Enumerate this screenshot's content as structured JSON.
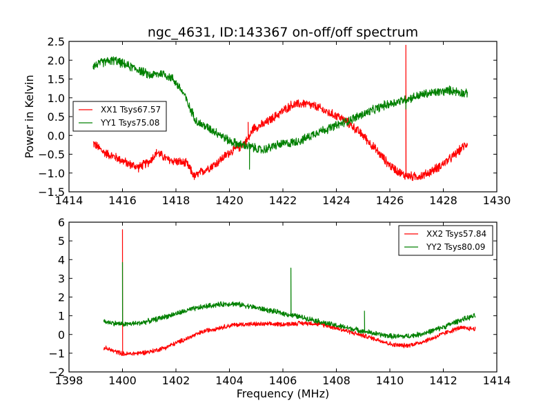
{
  "colors": {
    "red": "#ff0000",
    "green": "#008000",
    "frame": "#000000",
    "background": "#ffffff"
  },
  "chart_data": [
    {
      "type": "line",
      "title": "ngc_4631, ID:143367 on-off/off spectrum",
      "xlabel": "",
      "ylabel": "Power in Kelvin",
      "xlim": [
        1414,
        1430
      ],
      "ylim": [
        -1.5,
        2.5
      ],
      "xticks": [
        "1414",
        "1416",
        "1418",
        "1420",
        "1422",
        "1424",
        "1426",
        "1428",
        "1430"
      ],
      "yticks": [
        "−1.5",
        "−1.0",
        "−0.5",
        "0.0",
        "0.5",
        "1.0",
        "1.5",
        "2.0",
        "2.5"
      ],
      "xtick_values": [
        1414,
        1416,
        1418,
        1420,
        1422,
        1424,
        1426,
        1428,
        1430
      ],
      "ytick_values": [
        -1.5,
        -1.0,
        -0.5,
        0.0,
        0.5,
        1.0,
        1.5,
        2.0,
        2.5
      ],
      "legend_position": "center-left",
      "grid": false,
      "series": [
        {
          "name": "XX1 Tsys67.57",
          "color": "#ff0000",
          "noise": 0.07,
          "x": [
            1414.9,
            1415.3,
            1415.8,
            1416.2,
            1416.6,
            1417.0,
            1417.3,
            1417.7,
            1418.1,
            1418.4,
            1418.7,
            1419.0,
            1419.5,
            1420.0,
            1420.4,
            1420.7,
            1420.9,
            1421.3,
            1421.8,
            1422.3,
            1422.8,
            1423.3,
            1423.7,
            1424.1,
            1424.5,
            1425.0,
            1425.5,
            1426.0,
            1426.5,
            1426.9,
            1427.3,
            1427.8,
            1428.3,
            1428.9
          ],
          "y": [
            -0.2,
            -0.45,
            -0.6,
            -0.75,
            -0.85,
            -0.7,
            -0.45,
            -0.65,
            -0.7,
            -0.75,
            -1.1,
            -0.95,
            -0.75,
            -0.45,
            -0.3,
            -0.1,
            0.2,
            0.3,
            0.55,
            0.8,
            0.85,
            0.75,
            0.6,
            0.5,
            0.3,
            0.0,
            -0.4,
            -0.8,
            -1.05,
            -1.1,
            -1.05,
            -0.85,
            -0.6,
            -0.2
          ],
          "spikes": [
            {
              "x": 1426.6,
              "y": 2.4
            },
            {
              "x": 1420.7,
              "y": 0.35
            }
          ]
        },
        {
          "name": "YY1 Tsys75.08",
          "color": "#008000",
          "noise": 0.07,
          "x": [
            1414.9,
            1415.3,
            1415.7,
            1416.2,
            1416.6,
            1417.0,
            1417.5,
            1417.9,
            1418.3,
            1418.5,
            1418.8,
            1419.2,
            1419.6,
            1420.0,
            1420.4,
            1420.8,
            1421.2,
            1421.8,
            1422.3,
            1422.8,
            1423.3,
            1423.8,
            1424.3,
            1424.8,
            1425.3,
            1425.8,
            1426.3,
            1426.8,
            1427.3,
            1427.8,
            1428.3,
            1428.9
          ],
          "y": [
            1.85,
            1.95,
            2.0,
            1.85,
            1.75,
            1.6,
            1.65,
            1.5,
            1.1,
            0.75,
            0.35,
            0.2,
            0.05,
            -0.15,
            -0.25,
            -0.3,
            -0.4,
            -0.25,
            -0.2,
            -0.1,
            0.1,
            0.2,
            0.35,
            0.5,
            0.65,
            0.8,
            0.9,
            1.0,
            1.1,
            1.15,
            1.2,
            1.1
          ],
          "spikes": [
            {
              "x": 1420.75,
              "y": -0.9
            },
            {
              "x": 1426.6,
              "y": 0.7
            }
          ]
        }
      ]
    },
    {
      "type": "line",
      "title": "",
      "xlabel": "Frequency (MHz)",
      "ylabel": "",
      "xlim": [
        1398,
        1414
      ],
      "ylim": [
        -2,
        6
      ],
      "xticks": [
        "1398",
        "1400",
        "1402",
        "1404",
        "1406",
        "1408",
        "1410",
        "1412",
        "1414"
      ],
      "yticks": [
        "−2",
        "−1",
        "0",
        "1",
        "2",
        "3",
        "4",
        "5",
        "6"
      ],
      "xtick_values": [
        1398,
        1400,
        1402,
        1404,
        1406,
        1408,
        1410,
        1412,
        1414
      ],
      "ytick_values": [
        -2,
        -1,
        0,
        1,
        2,
        3,
        4,
        5,
        6
      ],
      "legend_position": "upper-right",
      "grid": false,
      "series": [
        {
          "name": "XX2 Tsys57.84",
          "color": "#ff0000",
          "noise": 0.07,
          "x": [
            1399.3,
            1399.7,
            1400.1,
            1400.6,
            1401.1,
            1401.6,
            1402.1,
            1402.6,
            1403.1,
            1403.6,
            1404.1,
            1404.6,
            1405.1,
            1405.6,
            1406.1,
            1406.6,
            1407.1,
            1407.6,
            1408.1,
            1408.6,
            1409.1,
            1409.6,
            1410.1,
            1410.6,
            1411.1,
            1411.6,
            1412.1,
            1412.6,
            1413.2
          ],
          "y": [
            -0.7,
            -0.9,
            -1.05,
            -1.0,
            -0.9,
            -0.7,
            -0.4,
            -0.1,
            0.2,
            0.35,
            0.5,
            0.55,
            0.55,
            0.55,
            0.55,
            0.6,
            0.6,
            0.5,
            0.3,
            0.1,
            -0.1,
            -0.3,
            -0.55,
            -0.6,
            -0.45,
            -0.2,
            0.1,
            0.35,
            0.3
          ],
          "spikes": [
            {
              "x": 1400.0,
              "y": 5.6
            },
            {
              "x": 1400.0,
              "y": -1.1
            }
          ]
        },
        {
          "name": "YY2 Tsys80.09",
          "color": "#008000",
          "noise": 0.08,
          "x": [
            1399.3,
            1399.7,
            1400.1,
            1400.6,
            1401.1,
            1401.6,
            1402.1,
            1402.6,
            1403.1,
            1403.6,
            1404.1,
            1404.6,
            1405.1,
            1405.6,
            1406.1,
            1406.6,
            1407.1,
            1407.6,
            1408.1,
            1408.6,
            1409.1,
            1409.6,
            1410.1,
            1410.6,
            1411.1,
            1411.6,
            1412.1,
            1412.6,
            1413.2
          ],
          "y": [
            0.7,
            0.6,
            0.55,
            0.6,
            0.75,
            0.95,
            1.15,
            1.35,
            1.5,
            1.6,
            1.65,
            1.55,
            1.4,
            1.25,
            1.1,
            0.95,
            0.8,
            0.6,
            0.45,
            0.3,
            0.15,
            0.0,
            -0.1,
            -0.1,
            0.0,
            0.2,
            0.45,
            0.75,
            1.0
          ],
          "spikes": [
            {
              "x": 1400.0,
              "y": 3.85
            },
            {
              "x": 1406.3,
              "y": 3.55
            },
            {
              "x": 1409.05,
              "y": 1.25
            }
          ]
        }
      ]
    }
  ]
}
